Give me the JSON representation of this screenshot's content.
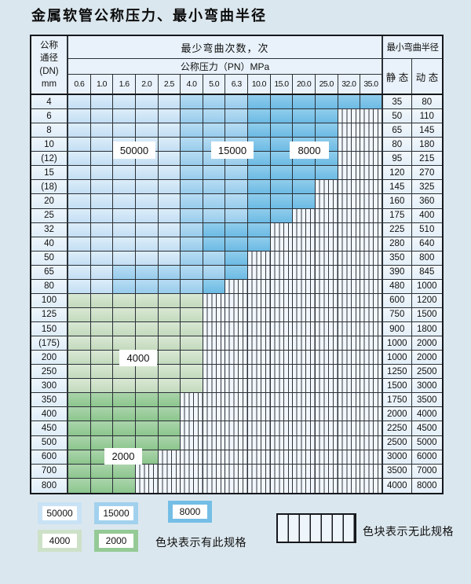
{
  "title": "金属软管公称压力、最小弯曲半径",
  "header": {
    "corner_lines": [
      "公称",
      "通径",
      "(DN)",
      "mm"
    ],
    "bend_cycles": "最少弯曲次数，次",
    "pressure": "公称压力（PN）MPa",
    "radius": "最小弯曲半径",
    "static": "静 态",
    "dynamic": "动 态"
  },
  "region_labels": [
    "50000",
    "15000",
    "8000",
    "4000",
    "2000"
  ],
  "legend": {
    "items": [
      {
        "value": "50000",
        "color": "#c9e2f5"
      },
      {
        "value": "15000",
        "color": "#a2d1ee"
      },
      {
        "value": "8000",
        "color": "#74bee6"
      },
      {
        "value": "4000",
        "color": "#cde1c8"
      },
      {
        "value": "2000",
        "color": "#95ca96"
      }
    ],
    "has_spec_text": "色块表示有此规格",
    "no_spec_text": "色块表示无此规格"
  },
  "chart_data": {
    "type": "table",
    "title": "金属软管公称压力、最小弯曲半径",
    "pressure_columns_MPa": [
      "0.6",
      "1.0",
      "1.6",
      "2.0",
      "2.5",
      "4.0",
      "5.0",
      "6.3",
      "10.0",
      "15.0",
      "20.0",
      "25.0",
      "32.0",
      "35.0"
    ],
    "dn_rows": [
      "4",
      "6",
      "8",
      "10",
      "(12)",
      "15",
      "(18)",
      "20",
      "25",
      "32",
      "40",
      "50",
      "65",
      "80",
      "100",
      "125",
      "150",
      "(175)",
      "200",
      "250",
      "300",
      "350",
      "400",
      "450",
      "500",
      "600",
      "700",
      "800"
    ],
    "min_bend_radius_static": [
      "35",
      "50",
      "65",
      "80",
      "95",
      "120",
      "145",
      "160",
      "175",
      "225",
      "280",
      "350",
      "390",
      "480",
      "600",
      "750",
      "900",
      "1000",
      "1000",
      "1250",
      "1500",
      "1750",
      "2000",
      "2250",
      "2500",
      "3000",
      "3500",
      "4000"
    ],
    "min_bend_radius_dynamic": [
      "80",
      "110",
      "145",
      "180",
      "215",
      "270",
      "325",
      "360",
      "400",
      "510",
      "640",
      "800",
      "845",
      "1000",
      "1200",
      "1500",
      "1800",
      "2000",
      "2000",
      "2500",
      "3000",
      "3500",
      "4000",
      "4500",
      "5000",
      "6000",
      "7000",
      "8000"
    ],
    "cycle_code_legend": {
      "A": "50000次",
      "B": "15000次",
      "C": "8000次",
      "D": "4000次",
      "E": "2000次",
      "X": "无此规格"
    },
    "cycle_matrix": [
      "AAAAABBBCCCCCC",
      "AAAAABBBCCCCXX",
      "AAAAABBBCCCCXX",
      "AAAAABBBCCCCXX",
      "AAAAABBBCCCCXX",
      "AAAAABBBCCCCXX",
      "AAAAABBBCCCXXX",
      "AAAAABBBCCCXXX",
      "AAAAABBBCCXXXX",
      "AAAAABCCCXXXXX",
      "AAAAABCCCXXXXX",
      "AAAAABBCXXXXXX",
      "AABBBBBCXXXXXX",
      "AABBBBCXXXXXXX",
      "DDDDDDXXXXXXXX",
      "DDDDDDXXXXXXXX",
      "DDDDDDXXXXXXXX",
      "DDDDDDXXXXXXXX",
      "DDDDDDXXXXXXXX",
      "DDDDDDXXXXXXXX",
      "DDDDDDXXXXXXXX",
      "EEEEEXXXXXXXXX",
      "EEEEEXXXXXXXXX",
      "EEEEEXXXXXXXXX",
      "EEEEEXXXXXXXXX",
      "EEEEXXXXXXXXXX",
      "EEEXXXXXXXXXXX",
      "EEEXXXXXXXXXXX"
    ]
  }
}
